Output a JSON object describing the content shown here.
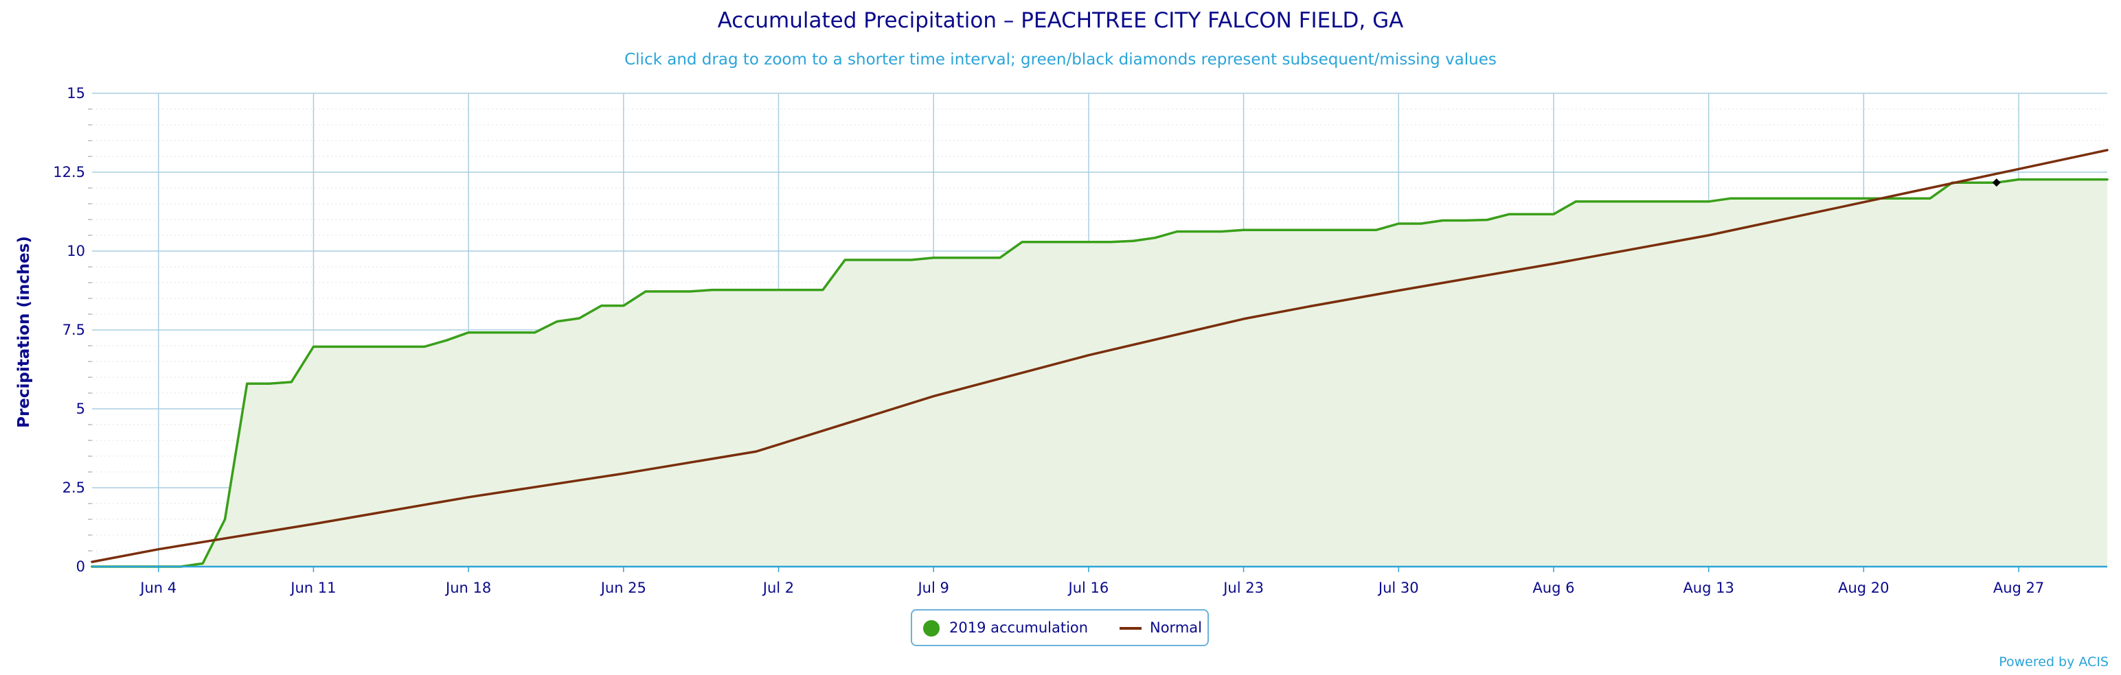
{
  "title": "Accumulated Precipitation – PEACHTREE CITY FALCON FIELD, GA",
  "subtitle": "Click and drag to zoom to a shorter time interval; green/black diamonds represent subsequent/missing values",
  "credits": "Powered by ACIS",
  "colors": {
    "accumulation": "#3a9f1a",
    "accumulation_fill": "#eaf3e3",
    "normal": "#7a2e0c",
    "grid": "#a9cde0",
    "axis": "#2aa4d8",
    "text": "#0a0a8c"
  },
  "legend": {
    "accum_label": "2019 accumulation",
    "normal_label": "Normal"
  },
  "chart_data": {
    "type": "line",
    "title": "Accumulated Precipitation – PEACHTREE CITY FALCON FIELD, GA",
    "ylabel": "Precipitation (inches)",
    "ylim": [
      0,
      15
    ],
    "y_ticks": [
      {
        "value": 0,
        "label": "0"
      },
      {
        "value": 2.5,
        "label": "2.5"
      },
      {
        "value": 5,
        "label": "5"
      },
      {
        "value": 7.5,
        "label": "7.5"
      },
      {
        "value": 10,
        "label": "10"
      },
      {
        "value": 12.5,
        "label": "12.5"
      },
      {
        "value": 15,
        "label": "15"
      }
    ],
    "x_range": [
      "2019-06-01",
      "2019-08-31"
    ],
    "x_ticks": [
      {
        "date": "2019-06-04",
        "label": "Jun 4"
      },
      {
        "date": "2019-06-11",
        "label": "Jun 11"
      },
      {
        "date": "2019-06-18",
        "label": "Jun 18"
      },
      {
        "date": "2019-06-25",
        "label": "Jun 25"
      },
      {
        "date": "2019-07-02",
        "label": "Jul 2"
      },
      {
        "date": "2019-07-09",
        "label": "Jul 9"
      },
      {
        "date": "2019-07-16",
        "label": "Jul 16"
      },
      {
        "date": "2019-07-23",
        "label": "Jul 23"
      },
      {
        "date": "2019-07-30",
        "label": "Jul 30"
      },
      {
        "date": "2019-08-06",
        "label": "Aug 6"
      },
      {
        "date": "2019-08-13",
        "label": "Aug 13"
      },
      {
        "date": "2019-08-20",
        "label": "Aug 20"
      },
      {
        "date": "2019-08-27",
        "label": "Aug 27"
      }
    ],
    "grid": true,
    "legend_position": "bottom-center",
    "series": [
      {
        "name": "2019 accumulation",
        "style": "line-area",
        "points": [
          [
            "2019-06-01",
            0
          ],
          [
            "2019-06-02",
            0
          ],
          [
            "2019-06-03",
            0
          ],
          [
            "2019-06-04",
            0
          ],
          [
            "2019-06-05",
            0
          ],
          [
            "2019-06-06",
            0.1
          ],
          [
            "2019-06-07",
            1.5
          ],
          [
            "2019-06-08",
            5.8
          ],
          [
            "2019-06-09",
            5.8
          ],
          [
            "2019-06-10",
            5.85
          ],
          [
            "2019-06-11",
            6.97
          ],
          [
            "2019-06-12",
            6.97
          ],
          [
            "2019-06-13",
            6.97
          ],
          [
            "2019-06-14",
            6.97
          ],
          [
            "2019-06-15",
            6.97
          ],
          [
            "2019-06-16",
            6.97
          ],
          [
            "2019-06-17",
            7.17
          ],
          [
            "2019-06-18",
            7.42
          ],
          [
            "2019-06-19",
            7.42
          ],
          [
            "2019-06-20",
            7.42
          ],
          [
            "2019-06-21",
            7.42
          ],
          [
            "2019-06-22",
            7.77
          ],
          [
            "2019-06-23",
            7.87
          ],
          [
            "2019-06-24",
            8.27
          ],
          [
            "2019-06-25",
            8.27
          ],
          [
            "2019-06-26",
            8.72
          ],
          [
            "2019-06-27",
            8.72
          ],
          [
            "2019-06-28",
            8.72
          ],
          [
            "2019-06-29",
            8.77
          ],
          [
            "2019-06-30",
            8.77
          ],
          [
            "2019-07-01",
            8.77
          ],
          [
            "2019-07-02",
            8.77
          ],
          [
            "2019-07-03",
            8.77
          ],
          [
            "2019-07-04",
            8.77
          ],
          [
            "2019-07-05",
            9.72
          ],
          [
            "2019-07-06",
            9.72
          ],
          [
            "2019-07-07",
            9.72
          ],
          [
            "2019-07-08",
            9.72
          ],
          [
            "2019-07-09",
            9.79
          ],
          [
            "2019-07-10",
            9.79
          ],
          [
            "2019-07-11",
            9.79
          ],
          [
            "2019-07-12",
            9.79
          ],
          [
            "2019-07-13",
            10.29
          ],
          [
            "2019-07-14",
            10.29
          ],
          [
            "2019-07-15",
            10.29
          ],
          [
            "2019-07-16",
            10.29
          ],
          [
            "2019-07-17",
            10.29
          ],
          [
            "2019-07-18",
            10.32
          ],
          [
            "2019-07-19",
            10.42
          ],
          [
            "2019-07-20",
            10.62
          ],
          [
            "2019-07-21",
            10.62
          ],
          [
            "2019-07-22",
            10.62
          ],
          [
            "2019-07-23",
            10.67
          ],
          [
            "2019-07-24",
            10.67
          ],
          [
            "2019-07-25",
            10.67
          ],
          [
            "2019-07-26",
            10.67
          ],
          [
            "2019-07-27",
            10.67
          ],
          [
            "2019-07-28",
            10.67
          ],
          [
            "2019-07-29",
            10.67
          ],
          [
            "2019-07-30",
            10.87
          ],
          [
            "2019-07-31",
            10.87
          ],
          [
            "2019-08-01",
            10.97
          ],
          [
            "2019-08-02",
            10.97
          ],
          [
            "2019-08-03",
            10.99
          ],
          [
            "2019-08-04",
            11.17
          ],
          [
            "2019-08-05",
            11.17
          ],
          [
            "2019-08-06",
            11.17
          ],
          [
            "2019-08-07",
            11.57
          ],
          [
            "2019-08-08",
            11.57
          ],
          [
            "2019-08-09",
            11.57
          ],
          [
            "2019-08-10",
            11.57
          ],
          [
            "2019-08-11",
            11.57
          ],
          [
            "2019-08-12",
            11.57
          ],
          [
            "2019-08-13",
            11.57
          ],
          [
            "2019-08-14",
            11.67
          ],
          [
            "2019-08-15",
            11.67
          ],
          [
            "2019-08-16",
            11.67
          ],
          [
            "2019-08-17",
            11.67
          ],
          [
            "2019-08-18",
            11.67
          ],
          [
            "2019-08-19",
            11.67
          ],
          [
            "2019-08-20",
            11.67
          ],
          [
            "2019-08-21",
            11.67
          ],
          [
            "2019-08-22",
            11.67
          ],
          [
            "2019-08-23",
            11.67
          ],
          [
            "2019-08-24",
            12.17
          ],
          [
            "2019-08-25",
            12.17
          ],
          [
            "2019-08-26",
            12.17
          ],
          [
            "2019-08-27",
            12.27
          ],
          [
            "2019-08-28",
            12.27
          ],
          [
            "2019-08-29",
            12.27
          ],
          [
            "2019-08-30",
            12.27
          ],
          [
            "2019-08-31",
            12.27
          ]
        ]
      },
      {
        "name": "Normal",
        "style": "line",
        "points": [
          [
            "2019-06-01",
            0.15
          ],
          [
            "2019-06-04",
            0.55
          ],
          [
            "2019-06-11",
            1.35
          ],
          [
            "2019-06-18",
            2.2
          ],
          [
            "2019-06-25",
            2.95
          ],
          [
            "2019-07-01",
            3.65
          ],
          [
            "2019-07-09",
            5.4
          ],
          [
            "2019-07-16",
            6.7
          ],
          [
            "2019-07-23",
            7.85
          ],
          [
            "2019-07-26",
            8.25
          ],
          [
            "2019-07-30",
            8.75
          ],
          [
            "2019-08-06",
            9.6
          ],
          [
            "2019-08-13",
            10.5
          ],
          [
            "2019-08-20",
            11.55
          ],
          [
            "2019-08-27",
            12.6
          ],
          [
            "2019-08-31",
            13.2
          ]
        ]
      }
    ],
    "markers": [
      {
        "type": "diamond",
        "color": "#000000",
        "date": "2019-08-26",
        "value": 12.17
      }
    ]
  }
}
